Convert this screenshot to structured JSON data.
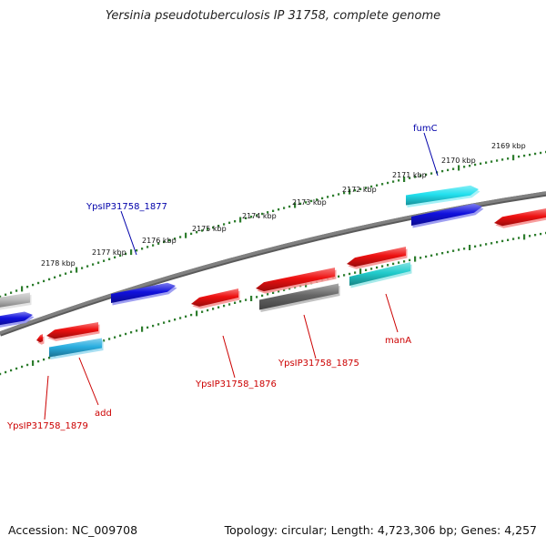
{
  "title": "Yersinia pseudotuberculosis IP 31758, complete genome",
  "footer": {
    "accession": "Accession: NC_009708",
    "info": "Topology: circular; Length: 4,723,306 bp; Genes: 4,257"
  },
  "colors": {
    "backbone": "#808080",
    "ruler": "#2e7d2e",
    "label_forward": "#0000aa",
    "label_reverse": "#cc0000",
    "red": "#ee1111",
    "blue": "#1111dd",
    "cyan": "#22cccc",
    "light_cyan": "#22e0ee",
    "sky": "#2aaee0",
    "gray": "#bbbbbb",
    "dark_gray": "#666666"
  },
  "scale_labels": [
    "2169 kbp",
    "2170 kbp",
    "2171 kbp",
    "2172 kbp",
    "2173 kbp",
    "2174 kbp",
    "2175 kbp",
    "2176 kbp",
    "2177 kbp",
    "2178 kbp"
  ],
  "gene_labels": [
    {
      "id": "fumC",
      "text": "fumC",
      "strand": "forward"
    },
    {
      "id": "YpsIP31758_1877",
      "text": "YpsIP31758_1877",
      "strand": "forward"
    },
    {
      "id": "manA",
      "text": "manA",
      "strand": "reverse"
    },
    {
      "id": "YpsIP31758_1875",
      "text": "YpsIP31758_1875",
      "strand": "reverse"
    },
    {
      "id": "YpsIP31758_1876",
      "text": "YpsIP31758_1876",
      "strand": "reverse"
    },
    {
      "id": "add",
      "text": "add",
      "strand": "reverse"
    },
    {
      "id": "YpsIP31758_1879",
      "text": "YpsIP31758_1879",
      "strand": "reverse"
    }
  ]
}
